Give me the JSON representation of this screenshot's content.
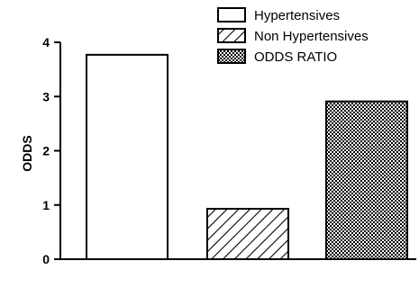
{
  "chart_data": {
    "type": "bar",
    "categories": [
      "Hypertensives",
      "Non Hypertensives",
      "ODDS RATIO"
    ],
    "values": [
      3.77,
      0.93,
      2.91
    ],
    "ylabel": "ODDS",
    "ylim": [
      0,
      4
    ],
    "yticks": [
      0,
      1,
      2,
      3,
      4
    ],
    "grid": false,
    "legend_position": "top-right",
    "series": [
      {
        "name": "Hypertensives",
        "pattern": "solid-white",
        "value": 3.77
      },
      {
        "name": "Non Hypertensives",
        "pattern": "diagonal-hatch",
        "value": 0.93
      },
      {
        "name": "ODDS RATIO",
        "pattern": "checker",
        "value": 2.91
      }
    ],
    "colors": {
      "stroke": "#000000",
      "fill": "#ffffff"
    }
  }
}
